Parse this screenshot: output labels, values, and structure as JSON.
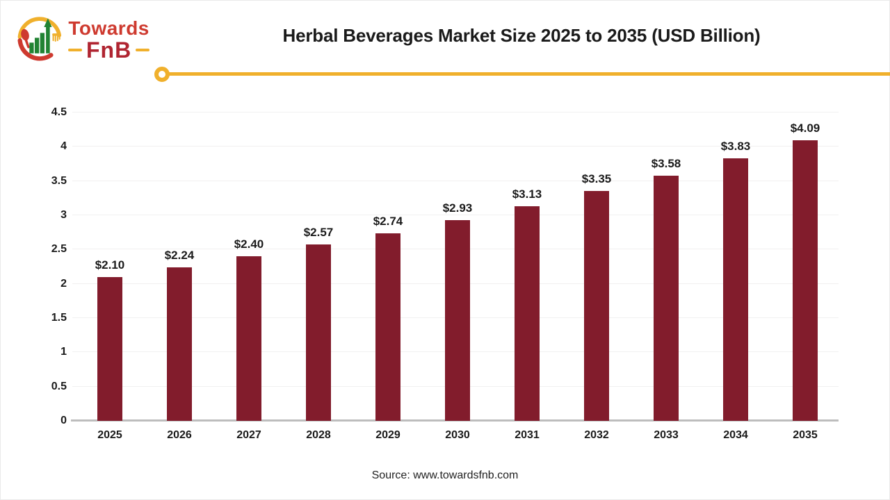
{
  "brand": {
    "towards": "Towards",
    "fnb": "FnB"
  },
  "header": {
    "title": "Herbal Beverages Market Size 2025 to 2035 (USD Billion)"
  },
  "footer": {
    "source": "Source: www.towardsfnb.com"
  },
  "colors": {
    "bar": "#821C2C",
    "accent_yellow": "#F0B02C",
    "brand_red": "#CE3A2F",
    "brand_dark_red": "#B02531",
    "brand_green": "#218333",
    "axis_line": "#BDBDBD",
    "gridline": "#F1F0F0",
    "title_text": "#1A1A1A"
  },
  "chart_data": {
    "type": "bar",
    "title": "Herbal Beverages Market Size 2025 to 2035 (USD Billion)",
    "categories": [
      "2025",
      "2026",
      "2027",
      "2028",
      "2029",
      "2030",
      "2031",
      "2032",
      "2033",
      "2034",
      "2035"
    ],
    "values": [
      2.1,
      2.24,
      2.4,
      2.57,
      2.74,
      2.93,
      3.13,
      3.35,
      3.58,
      3.83,
      4.09
    ],
    "data_labels": [
      "$2.10",
      "$2.24",
      "$2.40",
      "$2.57",
      "$2.74",
      "$2.93",
      "$3.13",
      "$3.35",
      "$3.58",
      "$3.83",
      "$4.09"
    ],
    "xlabel": "",
    "ylabel": "",
    "ylim": [
      0,
      4.5
    ],
    "yticks": [
      0,
      0.5,
      1,
      1.5,
      2,
      2.5,
      3,
      3.5,
      4,
      4.5
    ],
    "ytick_labels": [
      "0",
      "0.5",
      "1",
      "1.5",
      "2",
      "2.5",
      "3",
      "3.5",
      "4",
      "4.5"
    ],
    "grid": true,
    "legend": false
  }
}
